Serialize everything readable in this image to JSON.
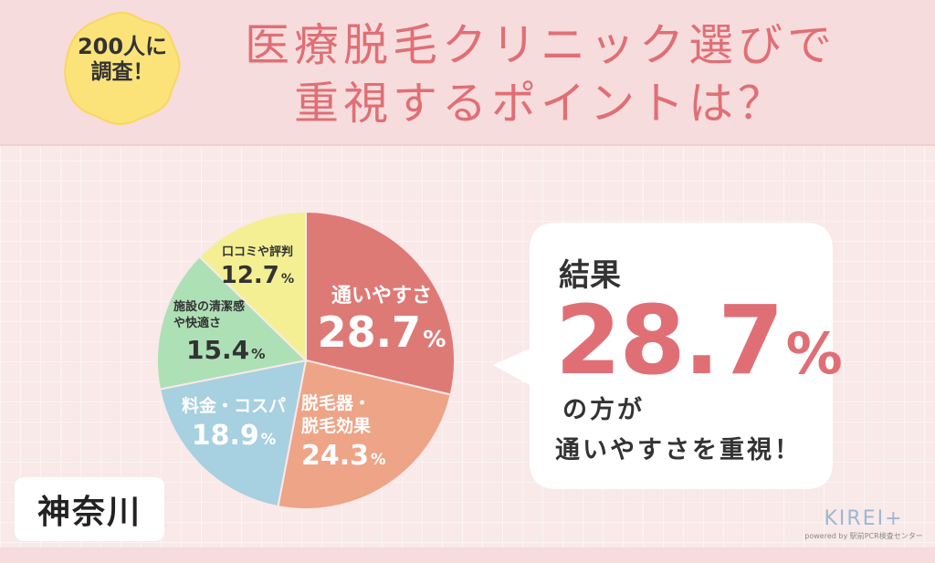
{
  "header": {
    "badge_line1": "200人に",
    "badge_line2": "調査！",
    "title_line1": "医療脱毛クリニック選びで",
    "title_line2": "重視するポイントは？"
  },
  "chart_data": {
    "type": "pie",
    "start": "12 o'clock",
    "direction": "clockwise",
    "slices": [
      {
        "label": "通いやすさ",
        "value": 28.7,
        "color": "#de7a76",
        "text_color": "#ffffff"
      },
      {
        "label": "脱毛器・脱毛効果",
        "value": 24.3,
        "color": "#eea486",
        "text_color": "#ffffff"
      },
      {
        "label": "料金・コスパ",
        "value": 18.9,
        "color": "#a7d0e0",
        "text_color": "#ffffff"
      },
      {
        "label": "施設の清潔感や快適さ",
        "value": 15.4,
        "color": "#aee0b6",
        "text_color": "#333333"
      },
      {
        "label": "口コミや評判",
        "value": 12.7,
        "color": "#f4ef93",
        "text_color": "#333333"
      }
    ]
  },
  "labels": {
    "s1_name": "通いやすさ",
    "s1_value": "28.7",
    "s1_unit": "%",
    "s2_name_1": "脱毛器・",
    "s2_name_2": "脱毛効果",
    "s2_value": "24.3",
    "s2_unit": "%",
    "s3_name": "料金・コスパ",
    "s3_value": "18.9",
    "s3_unit": "%",
    "s4_name_1": "施設の清潔感",
    "s4_name_2": "や快適さ",
    "s4_value": "15.4",
    "s4_unit": "%",
    "s5_name": "口コミや評判",
    "s5_value": "12.7",
    "s5_unit": "%"
  },
  "callout": {
    "heading": "結果",
    "value": "28.7",
    "unit": "%",
    "line1": "の方が",
    "line2": "通いやすさを重視！"
  },
  "region": "神奈川",
  "logo": {
    "brand": "KIREI+",
    "tagline": "powered by 駅前PCR検査センター"
  },
  "colors": {
    "accent": "#e06f75",
    "header_bg": "#f6dcdc",
    "page_bg": "#f9e9e9",
    "badge": "#fbe37a"
  }
}
